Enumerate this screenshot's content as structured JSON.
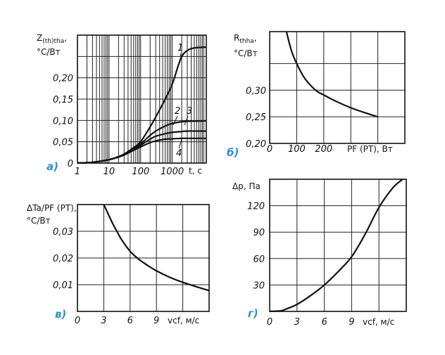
{
  "chart_data": [
    {
      "id": "a",
      "type": "line",
      "panel_tag": "а)",
      "title": "",
      "ylabel": {
        "main": "Z",
        "sub": "(th)tha",
        "suffix": ",",
        "unit": "°C/Вт"
      },
      "xlabel": "t, c",
      "xscale": "log",
      "xlim": [
        1,
        12000
      ],
      "ylim": [
        0,
        0.3
      ],
      "grid": true,
      "xticks": [
        {
          "v": 1,
          "label": "1"
        },
        {
          "v": 10,
          "label": "10"
        },
        {
          "v": 100,
          "label": "100"
        },
        {
          "v": 1000,
          "label": "1000"
        }
      ],
      "yticks": [
        {
          "v": 0,
          "label": "0"
        },
        {
          "v": 0.05,
          "label": "0,05"
        },
        {
          "v": 0.1,
          "label": "0,10"
        },
        {
          "v": 0.15,
          "label": "0,15"
        },
        {
          "v": 0.2,
          "label": "0,20"
        },
        {
          "v": 0.25,
          "label": ""
        }
      ],
      "series": [
        {
          "name": "1",
          "x": [
            1,
            3,
            10,
            20,
            30,
            60,
            100,
            200,
            300,
            600,
            1000,
            1500,
            2000,
            3000,
            5000,
            12000
          ],
          "y": [
            0,
            0.002,
            0.008,
            0.015,
            0.021,
            0.036,
            0.05,
            0.085,
            0.108,
            0.15,
            0.185,
            0.225,
            0.25,
            0.264,
            0.27,
            0.272
          ]
        },
        {
          "name": "2",
          "x": [
            1,
            3,
            10,
            20,
            30,
            60,
            100,
            200,
            300,
            600,
            1000,
            2000,
            3000,
            12000
          ],
          "y": [
            0,
            0.002,
            0.008,
            0.015,
            0.021,
            0.034,
            0.045,
            0.065,
            0.075,
            0.087,
            0.093,
            0.097,
            0.098,
            0.099
          ]
        },
        {
          "name": "3",
          "x": [
            1,
            3,
            10,
            20,
            30,
            60,
            100,
            200,
            300,
            600,
            1000,
            2000,
            3000,
            12000
          ],
          "y": [
            0,
            0.002,
            0.008,
            0.015,
            0.02,
            0.032,
            0.042,
            0.056,
            0.063,
            0.069,
            0.072,
            0.074,
            0.075,
            0.075
          ]
        },
        {
          "name": "4",
          "x": [
            1,
            3,
            10,
            20,
            30,
            60,
            100,
            200,
            300,
            600,
            1000,
            2000,
            3000,
            12000
          ],
          "y": [
            0,
            0.002,
            0.008,
            0.014,
            0.019,
            0.03,
            0.038,
            0.048,
            0.052,
            0.056,
            0.057,
            0.058,
            0.058,
            0.058
          ]
        }
      ]
    },
    {
      "id": "b",
      "type": "line",
      "panel_tag": "б)",
      "title": "",
      "ylabel": {
        "main": "R",
        "sub": "thha",
        "suffix": ",",
        "unit": "°C/Вт"
      },
      "xlabel": "PF (PT), Вт",
      "xscale": "linear",
      "xlim": [
        0,
        500
      ],
      "ylim": [
        0.2,
        0.41
      ],
      "grid": true,
      "xticks": [
        {
          "v": 0,
          "label": "0"
        },
        {
          "v": 100,
          "label": "100"
        },
        {
          "v": 200,
          "label": "200"
        },
        {
          "v": 300,
          "label": ""
        },
        {
          "v": 400,
          "label": ""
        }
      ],
      "yticks": [
        {
          "v": 0.2,
          "label": "0,20"
        },
        {
          "v": 0.25,
          "label": "0,25"
        },
        {
          "v": 0.3,
          "label": "0,30"
        },
        {
          "v": 0.35,
          "label": ""
        }
      ],
      "series": [
        {
          "name": "Rthha",
          "x": [
            62,
            80,
            100,
            130,
            170,
            200,
            250,
            300,
            350,
            400
          ],
          "y": [
            0.41,
            0.375,
            0.35,
            0.322,
            0.3,
            0.291,
            0.278,
            0.267,
            0.258,
            0.25
          ]
        }
      ]
    },
    {
      "id": "c",
      "type": "line",
      "panel_tag": "в)",
      "title": "",
      "ylabel": {
        "main": "ΔTa/PF (PT)",
        "sub": "",
        "suffix": ",",
        "unit": "°C/Вт"
      },
      "xlabel": "vcf, м/с",
      "xscale": "linear",
      "xlim": [
        0,
        15
      ],
      "ylim": [
        0,
        0.04
      ],
      "grid": true,
      "xticks": [
        {
          "v": 0,
          "label": "0"
        },
        {
          "v": 3,
          "label": "3"
        },
        {
          "v": 6,
          "label": "6"
        },
        {
          "v": 9,
          "label": "9"
        },
        {
          "v": 12,
          "label": ""
        }
      ],
      "yticks": [
        {
          "v": 0,
          "label": ""
        },
        {
          "v": 0.01,
          "label": "0,01"
        },
        {
          "v": 0.02,
          "label": "0,02"
        },
        {
          "v": 0.03,
          "label": "0,03"
        }
      ],
      "series": [
        {
          "name": "dTa/PF",
          "x": [
            3,
            4,
            4.5,
            5,
            6,
            7,
            8,
            9,
            10.5,
            12,
            13.5,
            15
          ],
          "y": [
            0.04,
            0.033,
            0.03,
            0.027,
            0.0225,
            0.0195,
            0.0172,
            0.0152,
            0.0128,
            0.0109,
            0.0093,
            0.0078
          ]
        }
      ]
    },
    {
      "id": "d",
      "type": "line",
      "panel_tag": "г)",
      "title": "",
      "ylabel": {
        "main": "Δp, Па",
        "sub": "",
        "suffix": "",
        "unit": ""
      },
      "xlabel": "vcf, м/с",
      "xscale": "linear",
      "xlim": [
        0,
        15
      ],
      "ylim": [
        0,
        150
      ],
      "grid": true,
      "xticks": [
        {
          "v": 0,
          "label": "0"
        },
        {
          "v": 3,
          "label": "3"
        },
        {
          "v": 6,
          "label": "6"
        },
        {
          "v": 9,
          "label": "9"
        },
        {
          "v": 12,
          "label": ""
        }
      ],
      "yticks": [
        {
          "v": 0,
          "label": ""
        },
        {
          "v": 30,
          "label": "30"
        },
        {
          "v": 60,
          "label": "60"
        },
        {
          "v": 90,
          "label": "90"
        },
        {
          "v": 120,
          "label": "120"
        }
      ],
      "series": [
        {
          "name": "dp",
          "x": [
            0,
            1,
            1.5,
            3,
            4.5,
            6,
            7.5,
            9,
            10.5,
            12,
            13.5,
            14.6
          ],
          "y": [
            0,
            0.5,
            1.5,
            8,
            18,
            30,
            45,
            62,
            88,
            118,
            140,
            150
          ]
        }
      ]
    }
  ]
}
